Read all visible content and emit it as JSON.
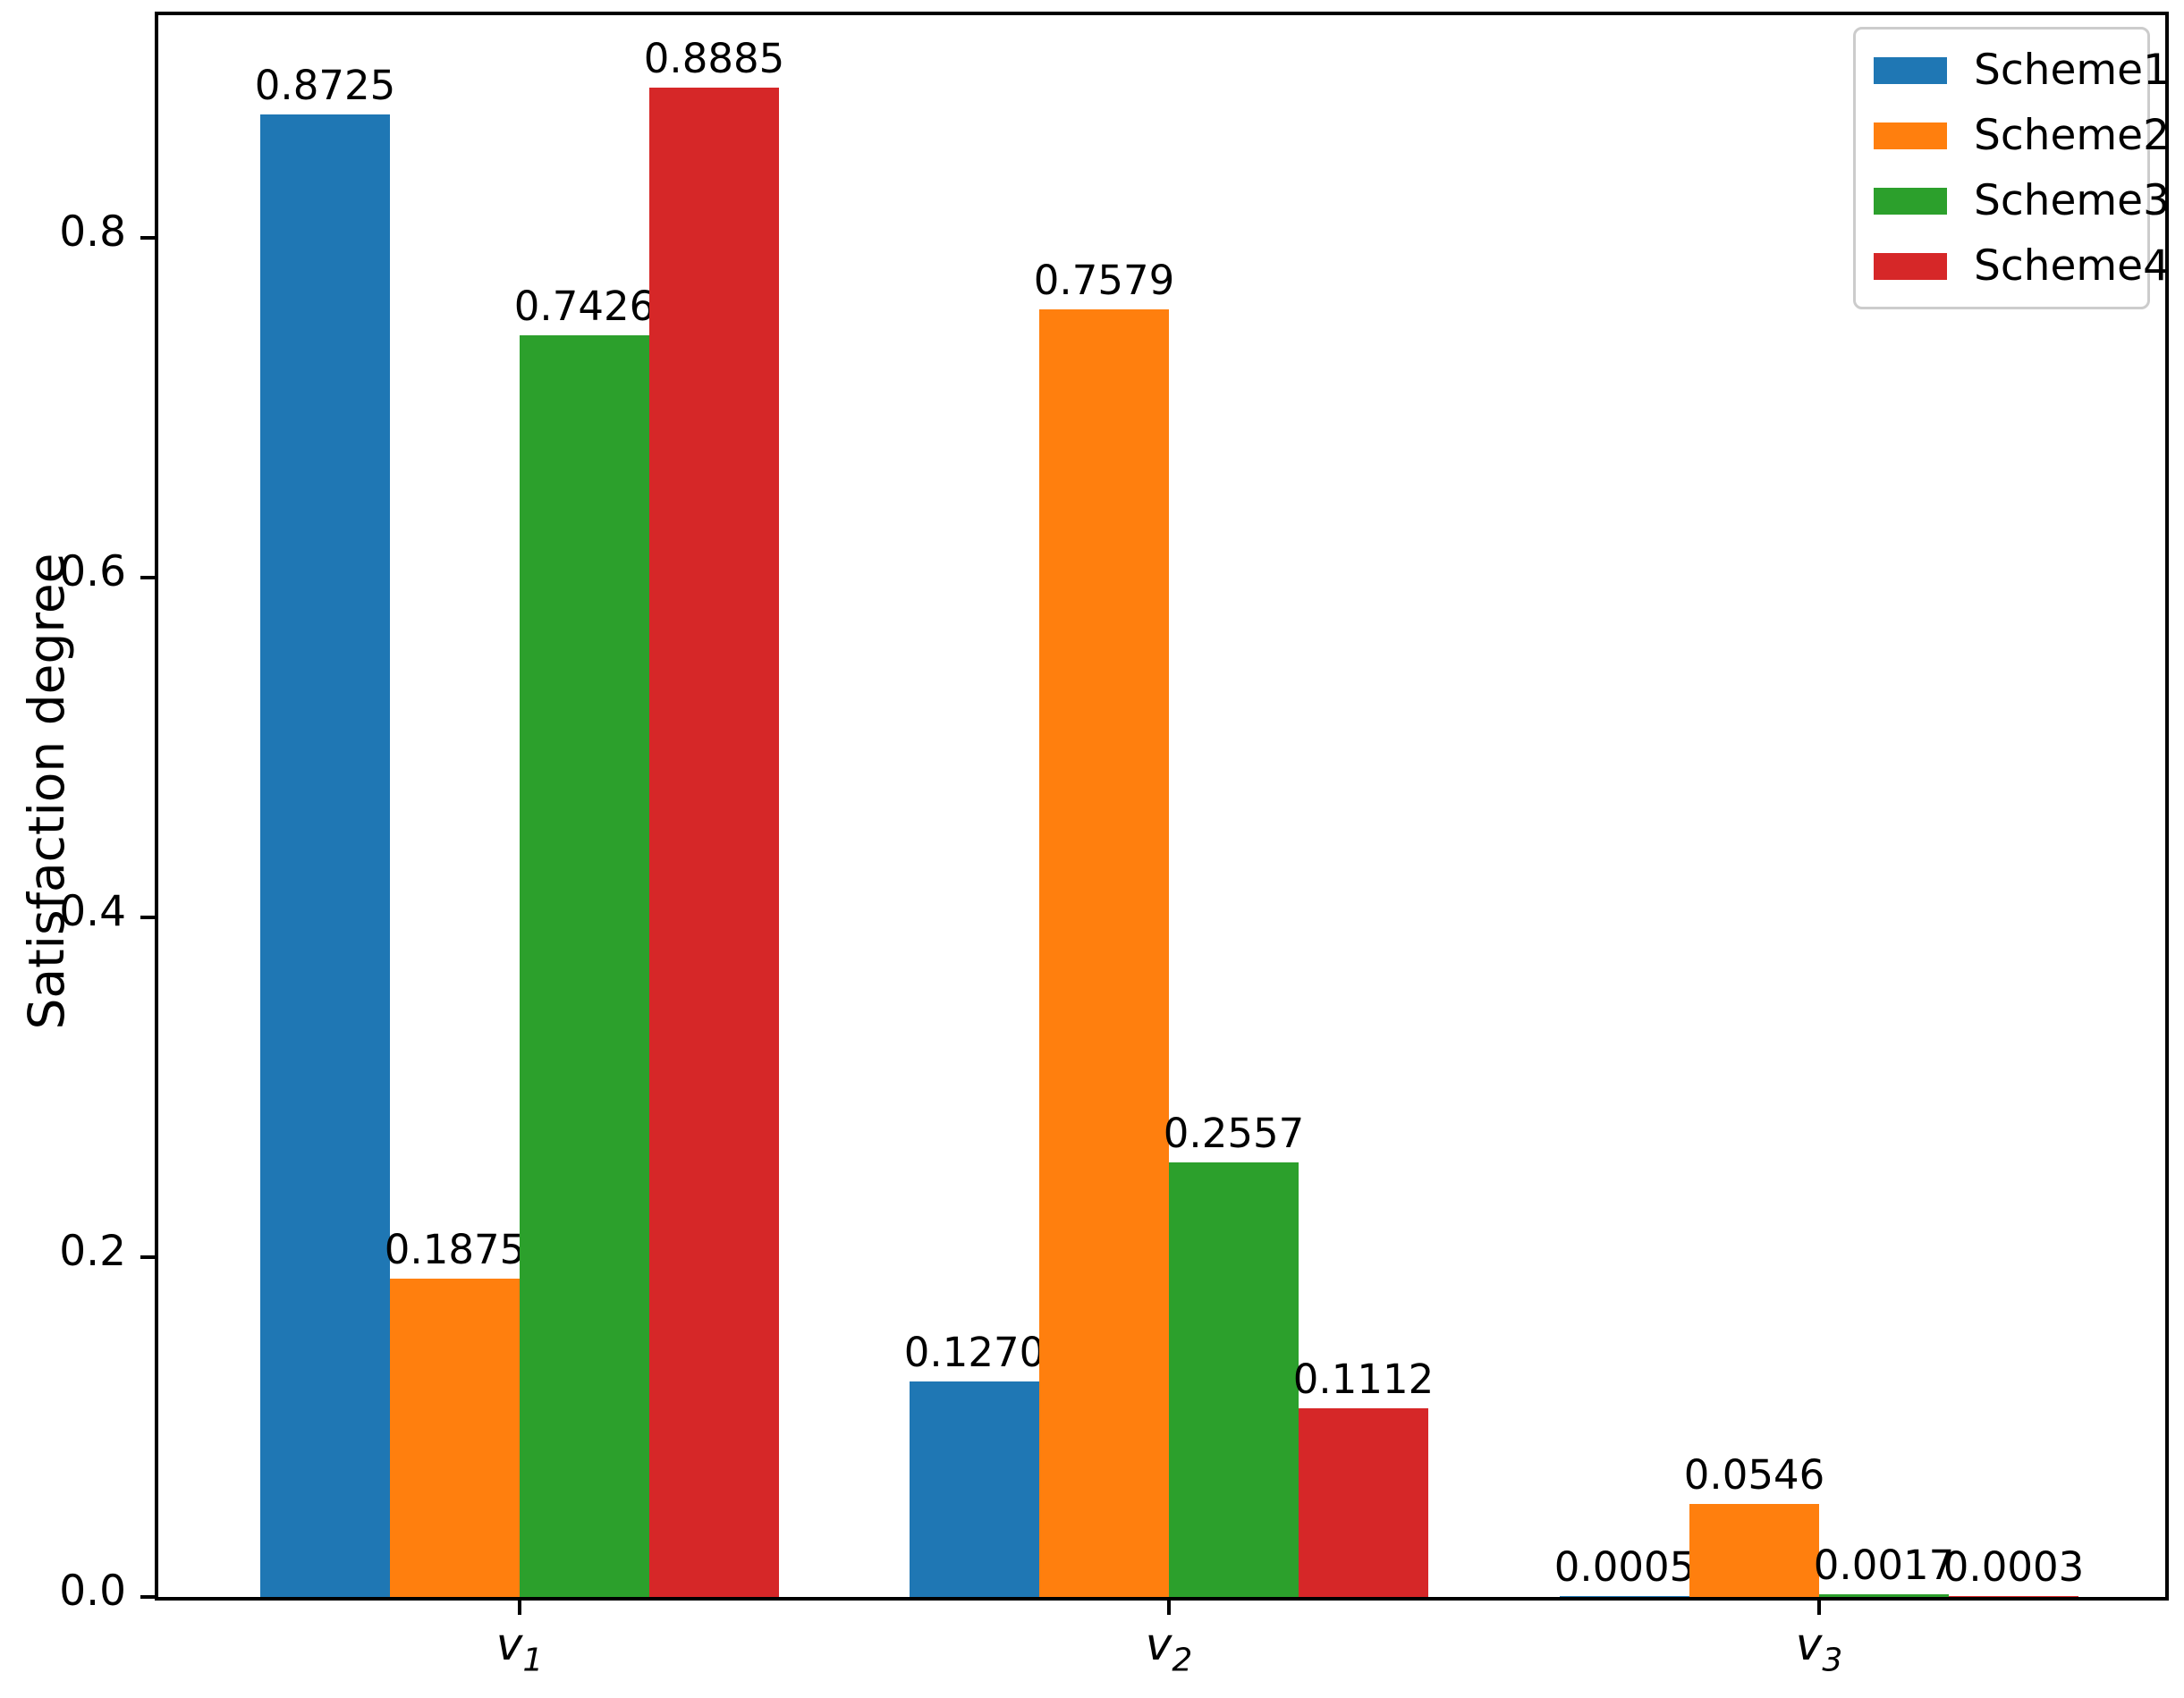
{
  "figure": {
    "background": "#ffffff"
  },
  "chart_data": {
    "type": "bar",
    "title": "",
    "xlabel": "",
    "ylabel": "Satisfaction degree",
    "grid": false,
    "legend_position": "upper right",
    "ylim": [
      0,
      0.932
    ],
    "yticks": {
      "values": [
        0.0,
        0.2,
        0.4,
        0.6,
        0.8
      ],
      "labels": [
        "0.0",
        "0.2",
        "0.4",
        "0.6",
        "0.8"
      ]
    },
    "categories": [
      "v1",
      "v2",
      "v3"
    ],
    "category_labels": [
      {
        "base": "v",
        "sub": "1"
      },
      {
        "base": "v",
        "sub": "2"
      },
      {
        "base": "v",
        "sub": "3"
      }
    ],
    "series": [
      {
        "name": "Scheme1",
        "color": "#1f77b4",
        "values": [
          0.8725,
          0.127,
          0.0005
        ],
        "labels": [
          "0.8725",
          "0.1270",
          "0.0005"
        ]
      },
      {
        "name": "Scheme2",
        "color": "#ff7f0e",
        "values": [
          0.1875,
          0.7579,
          0.0546
        ],
        "labels": [
          "0.1875",
          "0.7579",
          "0.0546"
        ]
      },
      {
        "name": "Scheme3",
        "color": "#2ca02c",
        "values": [
          0.7426,
          0.2557,
          0.0017
        ],
        "labels": [
          "0.7426",
          "0.2557",
          "0.0017"
        ]
      },
      {
        "name": "Scheme4",
        "color": "#d62728",
        "values": [
          0.8885,
          0.1112,
          0.0003
        ],
        "labels": [
          "0.8885",
          "0.1112",
          "0.0003"
        ]
      }
    ]
  }
}
